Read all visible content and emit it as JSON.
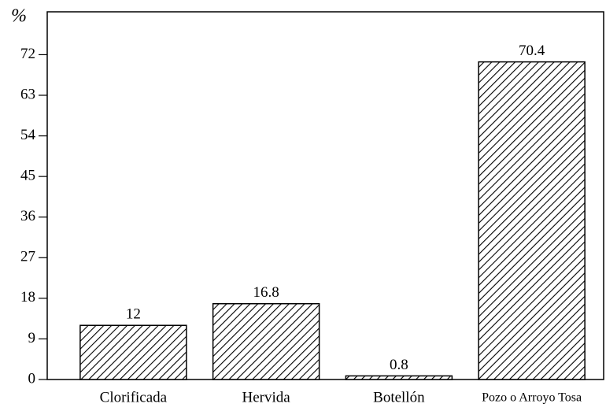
{
  "chart_data": {
    "type": "bar",
    "y_label": "%",
    "categories": [
      "Clorificada",
      "Hervida",
      "Botellón",
      "Pozo o Arroyo Tosa"
    ],
    "values": [
      12,
      16.8,
      0.8,
      70.4
    ],
    "color": "#000000",
    "pattern": "hatch",
    "ylim": [
      0,
      81.5
    ],
    "yticks": [
      0,
      9,
      18,
      27,
      36,
      45,
      54,
      63,
      72
    ],
    "grid": false
  }
}
